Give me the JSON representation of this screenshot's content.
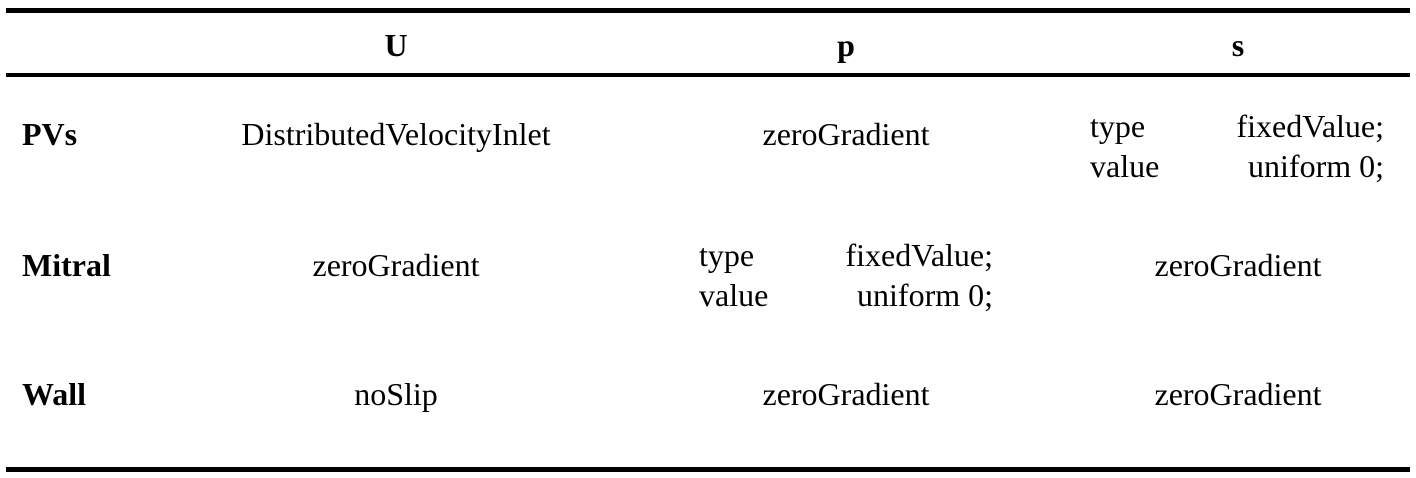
{
  "table": {
    "headers": [
      "U",
      "p",
      "s"
    ],
    "rows": [
      {
        "label": "PVs",
        "U": "DistributedVelocityInlet",
        "p": "zeroGradient",
        "s": {
          "type_key": "type",
          "type_value": "fixedValue;",
          "value_key": "value",
          "value_value": "uniform 0;"
        }
      },
      {
        "label": "Mitral",
        "U": "zeroGradient",
        "p": {
          "type_key": "type",
          "type_value": "fixedValue;",
          "value_key": "value",
          "value_value": "uniform 0;"
        },
        "s": "zeroGradient"
      },
      {
        "label": "Wall",
        "U": "noSlip",
        "p": "zeroGradient",
        "s": "zeroGradient"
      }
    ]
  }
}
